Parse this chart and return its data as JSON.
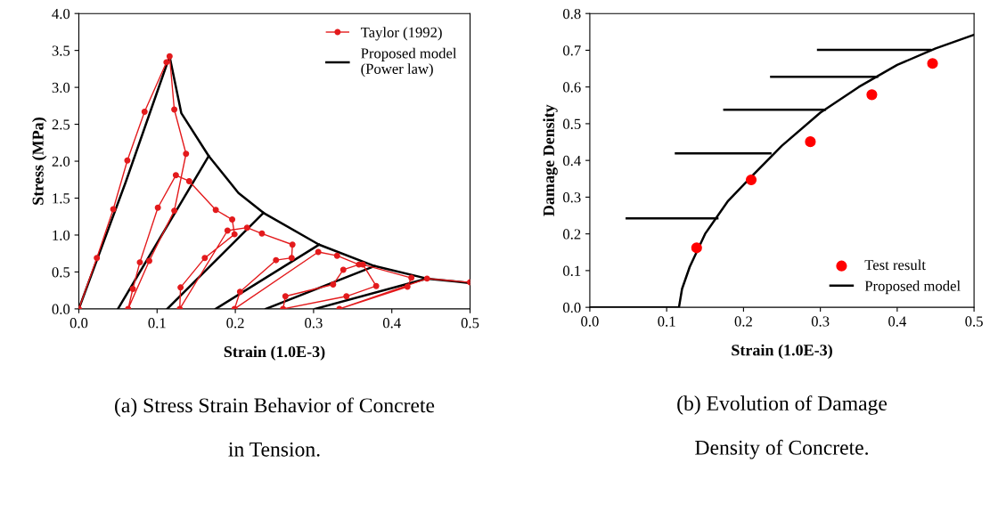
{
  "chart_data": [
    {
      "type": "line",
      "xlabel": "Strain (1.0E-3)",
      "ylabel": "Stress (MPa)",
      "xlim": [
        0,
        0.5
      ],
      "ylim": [
        0,
        4.0
      ],
      "xticks": [
        {
          "value": 0,
          "label": "0.0"
        },
        {
          "value": 0.1,
          "label": "0.1"
        },
        {
          "value": 0.2,
          "label": "0.2"
        },
        {
          "value": 0.3,
          "label": "0.3"
        },
        {
          "value": 0.4,
          "label": "0.4"
        },
        {
          "value": 0.5,
          "label": "0.5"
        }
      ],
      "yticks": [
        {
          "value": 0,
          "label": "0.0"
        },
        {
          "value": 0.5,
          "label": "0.5"
        },
        {
          "value": 1.0,
          "label": "1.0"
        },
        {
          "value": 1.5,
          "label": "1.5"
        },
        {
          "value": 2.0,
          "label": "2.0"
        },
        {
          "value": 2.5,
          "label": "2.5"
        },
        {
          "value": 3.0,
          "label": "3.0"
        },
        {
          "value": 3.5,
          "label": "3.5"
        },
        {
          "value": 4.0,
          "label": "4.0"
        }
      ],
      "grid": false,
      "legend": "top right",
      "annotations": [
        "(a) Stress Strain Behavior of Concrete\n\nin Tension."
      ],
      "series": [
        {
          "name": "Taylor (1992)",
          "color": "#e31a1c",
          "marker": "circle",
          "x": [
            0,
            0.023,
            0.044,
            0.062,
            0.084,
            0.112,
            0.116,
            0.122,
            0.137,
            0.122,
            0.09,
            0.063,
            0.069,
            0.078,
            0.101,
            0.124,
            0.141,
            0.175,
            0.196,
            0.199,
            0.161,
            0.13,
            0.129,
            0.19,
            0.215,
            0.234,
            0.273,
            0.272,
            0.252,
            0.206,
            0.199,
            0.306,
            0.33,
            0.358,
            0.338,
            0.325,
            0.264,
            0.261,
            0.342,
            0.38,
            0.363,
            0.425,
            0.42,
            0.333,
            0.445,
            0.5
          ],
          "values": [
            0,
            0.69,
            1.35,
            2.01,
            2.67,
            3.34,
            3.42,
            2.7,
            2.1,
            1.33,
            0.65,
            0,
            0.27,
            0.63,
            1.37,
            1.81,
            1.73,
            1.34,
            1.21,
            1.01,
            0.69,
            0.29,
            0,
            1.06,
            1.1,
            1.02,
            0.87,
            0.69,
            0.66,
            0.23,
            0,
            0.77,
            0.72,
            0.6,
            0.53,
            0.33,
            0.17,
            0,
            0.17,
            0.31,
            0.6,
            0.42,
            0.3,
            0,
            0.41,
            0.36
          ]
        },
        {
          "name": "Proposed model\n(Power law)",
          "color": "#000000",
          "x": [
            0,
            0.06,
            0.116,
            0.131,
            0.166,
            0.204,
            0.236,
            0.307,
            0.378,
            0.445,
            0.5
          ],
          "values": [
            0,
            1.72,
            3.42,
            2.65,
            2.07,
            1.57,
            1.3,
            0.87,
            0.58,
            0.41,
            0.35
          ]
        },
        {
          "color": "#000000",
          "x": [
            0.05,
            0.166
          ],
          "values": [
            0,
            2.07
          ]
        },
        {
          "color": "#000000",
          "x": [
            0.113,
            0.236
          ],
          "values": [
            0,
            1.3
          ]
        },
        {
          "color": "#000000",
          "x": [
            0.175,
            0.307
          ],
          "values": [
            0,
            0.87
          ]
        },
        {
          "color": "#000000",
          "x": [
            0.239,
            0.378
          ],
          "values": [
            0,
            0.58
          ]
        },
        {
          "color": "#000000",
          "x": [
            0.302,
            0.445
          ],
          "values": [
            0,
            0.41
          ]
        }
      ]
    },
    {
      "type": "line",
      "xlabel": "Strain (1.0E-3)",
      "ylabel": "Damage Density",
      "xlim": [
        0,
        0.5
      ],
      "ylim": [
        0,
        0.8
      ],
      "xticks": [
        {
          "value": 0,
          "label": "0.0"
        },
        {
          "value": 0.1,
          "label": "0.1"
        },
        {
          "value": 0.2,
          "label": "0.2"
        },
        {
          "value": 0.3,
          "label": "0.3"
        },
        {
          "value": 0.4,
          "label": "0.4"
        },
        {
          "value": 0.5,
          "label": "0.5"
        }
      ],
      "yticks": [
        {
          "value": 0,
          "label": "0.0"
        },
        {
          "value": 0.1,
          "label": "0.1"
        },
        {
          "value": 0.2,
          "label": "0.2"
        },
        {
          "value": 0.3,
          "label": "0.3"
        },
        {
          "value": 0.4,
          "label": "0.4"
        },
        {
          "value": 0.5,
          "label": "0.5"
        },
        {
          "value": 0.6,
          "label": "0.6"
        },
        {
          "value": 0.7,
          "label": "0.7"
        },
        {
          "value": 0.8,
          "label": "0.8"
        }
      ],
      "grid": false,
      "legend": "bottom right",
      "annotations": [
        "(b) Evolution of Damage\n\nDensity of Concrete."
      ],
      "series": [
        {
          "name": "Test result",
          "type": "scatter",
          "color": "#ff0000",
          "x": [
            0.139,
            0.21,
            0.287,
            0.367,
            0.446
          ],
          "values": [
            0.162,
            0.347,
            0.451,
            0.579,
            0.664
          ]
        },
        {
          "name": "Proposed model",
          "color": "#000000",
          "x": [
            0,
            0.116,
            0.12,
            0.13,
            0.15,
            0.18,
            0.21,
            0.25,
            0.3,
            0.35,
            0.4,
            0.45,
            0.5
          ],
          "values": [
            0,
            0,
            0.05,
            0.11,
            0.2,
            0.29,
            0.355,
            0.44,
            0.53,
            0.6,
            0.66,
            0.705,
            0.742
          ]
        },
        {
          "color": "#000000",
          "x": [
            0.048,
            0.166
          ],
          "values": [
            0.242,
            0.242
          ]
        },
        {
          "color": "#000000",
          "x": [
            0.112,
            0.235
          ],
          "values": [
            0.419,
            0.419
          ]
        },
        {
          "color": "#000000",
          "x": [
            0.175,
            0.306
          ],
          "values": [
            0.538,
            0.538
          ]
        },
        {
          "color": "#000000",
          "x": [
            0.236,
            0.374
          ],
          "values": [
            0.628,
            0.628
          ]
        },
        {
          "color": "#000000",
          "x": [
            0.297,
            0.443
          ],
          "values": [
            0.701,
            0.701
          ]
        }
      ]
    }
  ]
}
